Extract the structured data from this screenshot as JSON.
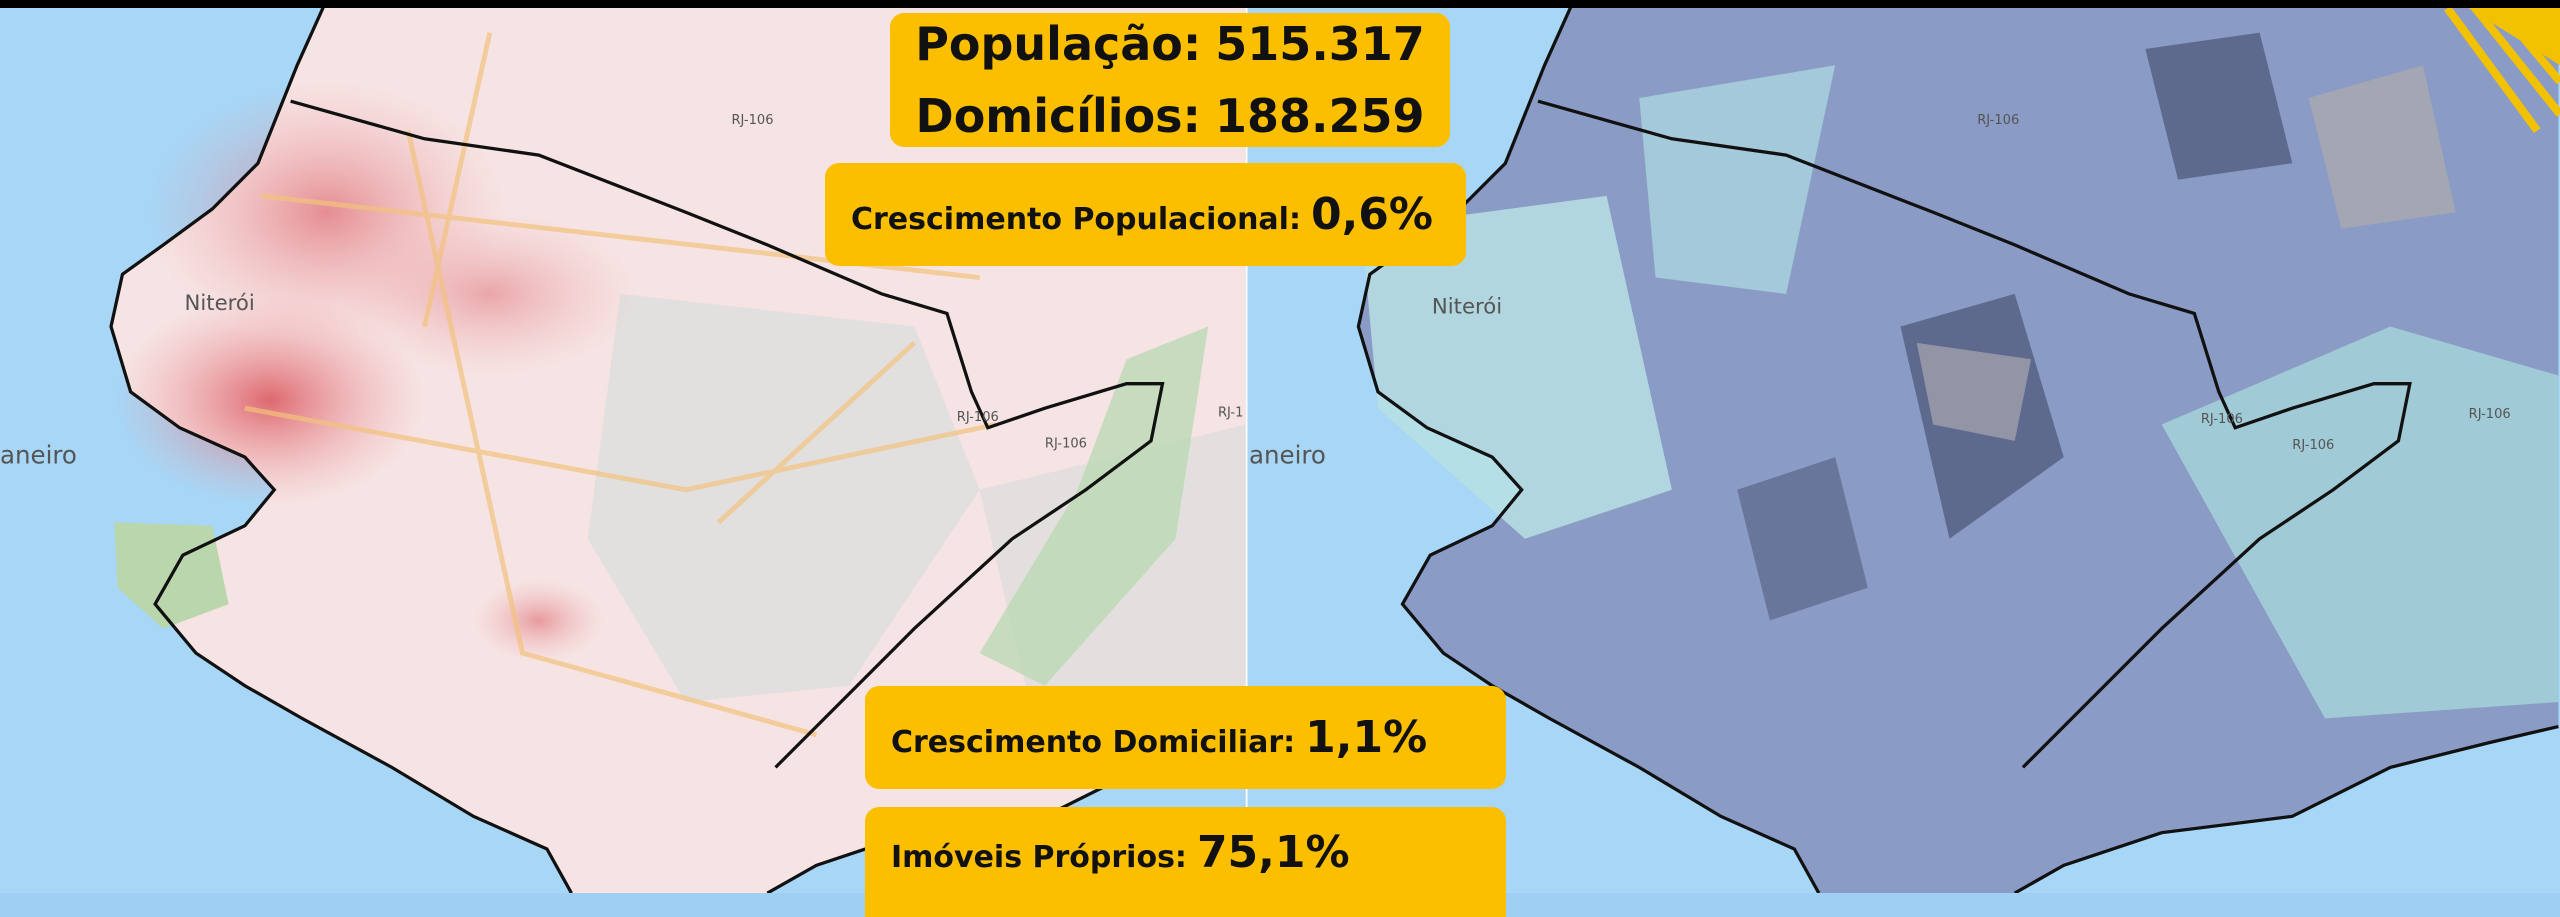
{
  "stats": [
    {
      "label": "População:",
      "value": "515.317"
    },
    {
      "label": "Domicílios:",
      "value": "188.259"
    },
    {
      "label": "Crescimento Populacional:",
      "value": "0,6%"
    },
    {
      "label": "Crescimento Domiciliar:",
      "value": "1,1%"
    },
    {
      "label": "Imóveis Próprios:",
      "value": "75,1%"
    }
  ],
  "map_labels": [
    "Niterói",
    "aneiro",
    "RJ-106",
    "RJ-106",
    "RJ-106",
    "RJ-1",
    "Niterói",
    "aneiro",
    "RJ-106",
    "RJ-106",
    "RJ-106",
    "RJ-106"
  ]
}
